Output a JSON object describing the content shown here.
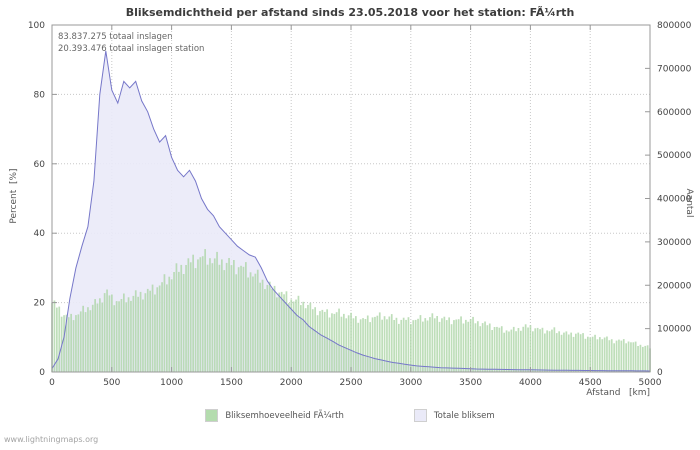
{
  "title": "Bliksemdichtheid per afstand sinds 23.05.2018 voor het station: FÃ¼rth",
  "annotations": [
    "83.837.275 totaal inslagen",
    "20.393.476 totaal inslagen station"
  ],
  "watermark": "www.lightningmaps.org",
  "legend": [
    {
      "label": "Bliksemhoeveelheid FÃ¼rth",
      "color": "#b4dcae"
    },
    {
      "label": "Totale bliksem",
      "color": "#eaeaf8",
      "line_color": "#7677c9"
    }
  ],
  "colors": {
    "green_fill": "#aed6a8",
    "lavender_fill": "#eaeaf8",
    "blue_line": "#7677c9",
    "grid": "#c8c8c8",
    "frame": "#999999",
    "tick_text": "#444444"
  },
  "chart_data": {
    "type": "area",
    "title": "Bliksemdichtheid per afstand sinds 23.05.2018 voor het station: FÃ¼rth",
    "x_axis": {
      "label": "Afstand   [km]",
      "min": 0,
      "max": 5000,
      "tick_step": 500
    },
    "left_axis": {
      "label": "Percent  [%]",
      "min": 0,
      "max": 100,
      "tick_step": 20
    },
    "right_axis": {
      "label": "Aantal",
      "min": 0,
      "max": 800000,
      "tick_step": 100000
    },
    "grid": true,
    "legend_position": "bottom-center",
    "x": [
      0,
      50,
      100,
      150,
      200,
      250,
      300,
      350,
      400,
      450,
      500,
      550,
      600,
      650,
      700,
      750,
      800,
      850,
      900,
      950,
      1000,
      1050,
      1100,
      1150,
      1200,
      1250,
      1300,
      1350,
      1400,
      1450,
      1500,
      1550,
      1600,
      1650,
      1700,
      1750,
      1800,
      1850,
      1900,
      1950,
      2000,
      2050,
      2100,
      2150,
      2200,
      2250,
      2300,
      2350,
      2400,
      2450,
      2500,
      2550,
      2600,
      2650,
      2700,
      2750,
      2800,
      2850,
      2900,
      2950,
      3000,
      3050,
      3100,
      3150,
      3200,
      3250,
      3300,
      3350,
      3400,
      3450,
      3500,
      3550,
      3600,
      3650,
      3700,
      3750,
      3800,
      3850,
      3900,
      3950,
      4000,
      4050,
      4100,
      4150,
      4200,
      4250,
      4300,
      4350,
      4400,
      4450,
      4500,
      4550,
      4600,
      4650,
      4700,
      4750,
      4800,
      4850,
      4900,
      4950,
      5000
    ],
    "series": [
      {
        "name": "Bliksemhoeveelheid FÃ¼rth",
        "axis": "left",
        "unit": "percent",
        "style": "bars",
        "values": [
          20,
          18.5,
          16.5,
          15.5,
          16.5,
          17.5,
          18.5,
          19.5,
          20.5,
          23.5,
          21,
          20.5,
          21,
          21.5,
          22,
          22.5,
          23,
          24,
          25,
          26.5,
          28,
          29.5,
          30.5,
          31.5,
          32.5,
          33,
          33,
          32.5,
          32,
          31.5,
          31,
          30.5,
          30,
          29,
          28,
          26.5,
          25,
          24,
          23,
          22,
          21,
          20.5,
          20,
          19,
          18,
          17.5,
          17,
          17,
          17,
          16.5,
          16,
          15.5,
          15,
          15.5,
          16,
          16,
          16,
          15.5,
          15,
          15,
          15,
          15,
          15.5,
          15.5,
          16,
          15.5,
          15,
          15,
          15,
          15,
          15,
          14.5,
          14,
          13.5,
          13,
          12.5,
          12,
          12,
          12.5,
          13,
          13,
          12.5,
          12,
          12,
          12,
          11.5,
          11,
          11,
          11,
          10.5,
          10,
          10,
          10,
          9.5,
          9,
          9,
          9,
          8.5,
          8,
          7.5,
          7
        ]
      },
      {
        "name": "Totale bliksem",
        "axis": "right",
        "unit": "count",
        "style": "area-line",
        "values": [
          8000,
          30000,
          80000,
          170000,
          240000,
          290000,
          335000,
          440000,
          640000,
          740000,
          650000,
          620000,
          670000,
          655000,
          670000,
          625000,
          600000,
          560000,
          530000,
          545000,
          495000,
          465000,
          450000,
          465000,
          440000,
          400000,
          375000,
          360000,
          335000,
          320000,
          305000,
          290000,
          280000,
          270000,
          265000,
          240000,
          210000,
          190000,
          175000,
          160000,
          145000,
          130000,
          120000,
          105000,
          95000,
          85000,
          78000,
          70000,
          62000,
          56000,
          50000,
          44000,
          39000,
          35000,
          31000,
          28000,
          25000,
          22000,
          20000,
          18000,
          16000,
          14000,
          13000,
          12000,
          11000,
          10000,
          9500,
          9000,
          8500,
          8000,
          7500,
          7000,
          6800,
          6500,
          6200,
          6000,
          5800,
          5500,
          5300,
          5100,
          5000,
          4800,
          4600,
          4400,
          4200,
          4000,
          3900,
          3800,
          3600,
          3500,
          3400,
          3300,
          3200,
          3100,
          3000,
          2900,
          2800,
          2700,
          2600,
          2500,
          2400
        ]
      }
    ]
  }
}
